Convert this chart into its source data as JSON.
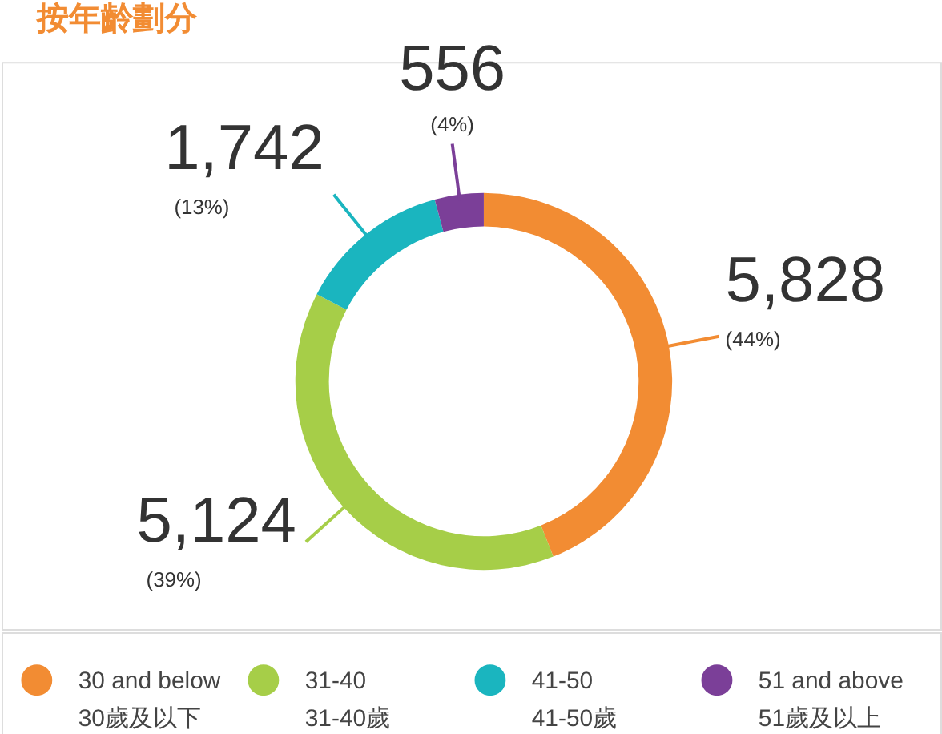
{
  "chart_data": {
    "type": "donut",
    "title": "按年齡劃分",
    "categories": [
      "30 and below\n30歲及以下",
      "31-40\n31-40歲",
      "41-50\n41-50歲",
      "51 and above\n51歲及以上"
    ],
    "values": [
      5828,
      5124,
      1742,
      556
    ],
    "colors": [
      "#f28c33",
      "#a6ce48",
      "#1ab5bf",
      "#7b3f98"
    ],
    "value_labels": [
      "5,828",
      "5,124",
      "1,742",
      "556"
    ],
    "annotations": [
      "(44%)",
      "(39%)",
      "(13%)",
      "(4%)"
    ],
    "legend": "bottom"
  }
}
